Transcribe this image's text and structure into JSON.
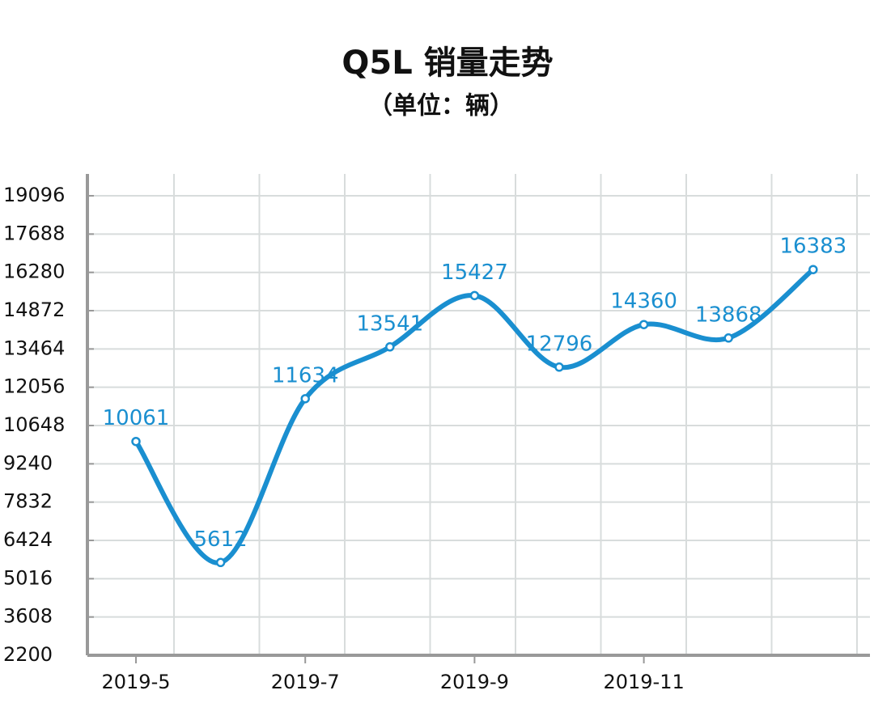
{
  "chart_data": {
    "type": "line",
    "title": "Q5L 销量走势",
    "subtitle": "（单位：辆）",
    "categories": [
      "2019-5",
      null,
      "2019-7",
      null,
      "2019-9",
      null,
      "2019-11",
      null,
      null
    ],
    "series": [
      {
        "name": "Q5L",
        "color": "#1a8fd0",
        "values": [
          10061,
          5612,
          11634,
          13541,
          15427,
          12796,
          14360,
          13868,
          16383
        ]
      }
    ],
    "ylim": [
      2200,
      19900
    ],
    "yticks": [
      2200,
      3608,
      5016,
      6424,
      7832,
      9240,
      10648,
      12056,
      13464,
      14872,
      16280,
      17688,
      19096
    ],
    "grid": true
  }
}
